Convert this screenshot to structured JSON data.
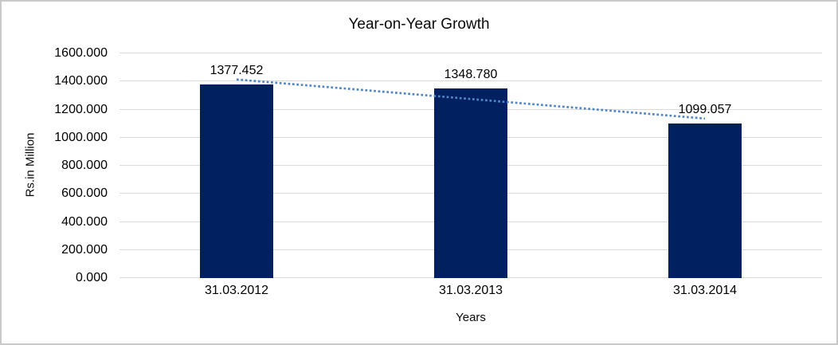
{
  "chart_data": {
    "type": "bar",
    "title": "Year-on-Year Growth",
    "xlabel": "Years",
    "ylabel": "Rs.in Million",
    "categories": [
      "31.03.2012",
      "31.03.2013",
      "31.03.2014"
    ],
    "values": [
      1377.452,
      1348.78,
      1099.057
    ],
    "value_labels": [
      "1377.452",
      "1348.780",
      "1099.057"
    ],
    "ylim": [
      0,
      1600
    ],
    "ytick_step": 200,
    "ytick_labels": [
      "0.000",
      "200.000",
      "400.000",
      "600.000",
      "800.000",
      "1000.000",
      "1200.000",
      "1400.000",
      "1600.000"
    ],
    "grid": true,
    "legend": false,
    "trendline": {
      "type": "linear",
      "style": "dotted"
    },
    "colors": {
      "bar": "#002060",
      "trendline": "#4f86c8",
      "gridline": "#d9d9d9",
      "text": "#000000",
      "frame_border": "#c9c9c9"
    }
  }
}
